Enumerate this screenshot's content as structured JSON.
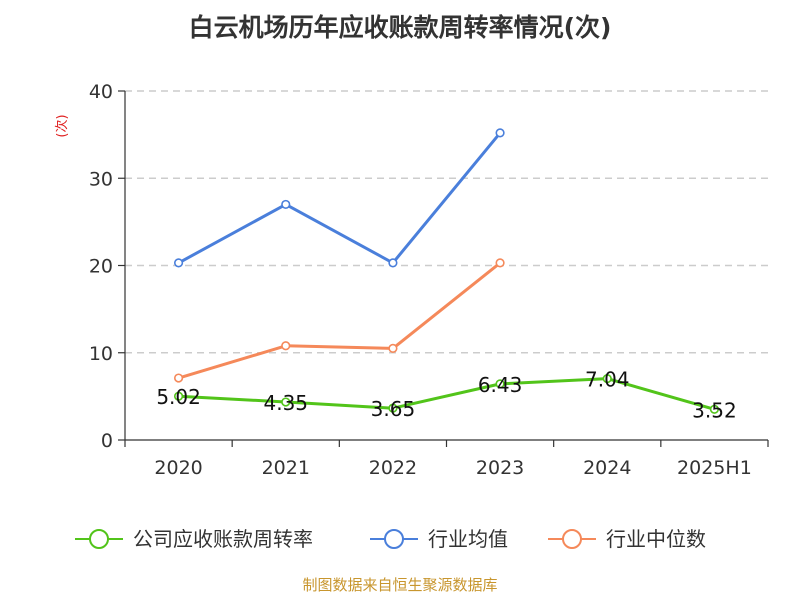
{
  "chart_data": {
    "type": "line",
    "title": "白云机场历年应收账款周转率情况(次)",
    "ylabel": "(次)",
    "categories": [
      "2020",
      "2021",
      "2022",
      "2023",
      "2024",
      "2025H1"
    ],
    "ylim": [
      0,
      40
    ],
    "yticks": [
      0,
      10,
      20,
      30,
      40
    ],
    "grid": true,
    "legend_position": "bottom",
    "series": [
      {
        "name": "公司应收账款周转率",
        "color": "#52c41a",
        "values": [
          5.02,
          4.35,
          3.65,
          6.43,
          7.04,
          3.52
        ],
        "labels": [
          "5.02",
          "4.35",
          "3.65",
          "6.43",
          "7.04",
          "3.52"
        ]
      },
      {
        "name": "行业均值",
        "color": "#4a7fdb",
        "values": [
          20.3,
          27.0,
          20.3,
          35.2,
          null,
          null
        ]
      },
      {
        "name": "行业中位数",
        "color": "#f5895a",
        "values": [
          7.1,
          10.8,
          10.5,
          20.3,
          null,
          null
        ]
      }
    ]
  },
  "source_note": "制图数据来自恒生聚源数据库",
  "colors": {
    "axis": "#333333",
    "grid": "#cccccc",
    "ylabel": "#e02020",
    "source": "#c8962e"
  }
}
